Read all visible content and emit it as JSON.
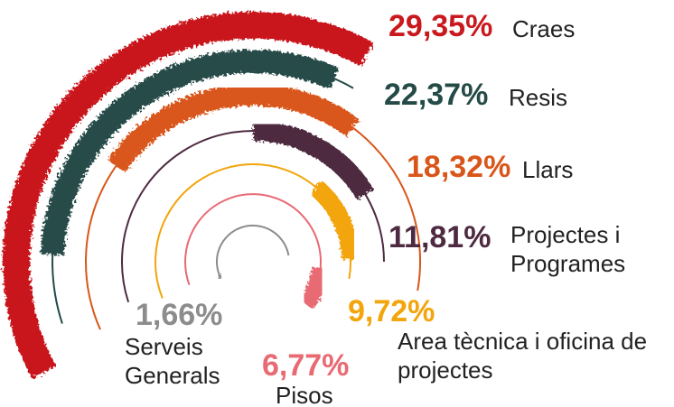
{
  "chart_data": {
    "type": "radial_bar",
    "categories": [
      "Craes",
      "Resis",
      "Llars",
      "Projectes i Programes",
      "Area tècnica i oficina de projectes",
      "Pisos",
      "Serveis Generals"
    ],
    "values": [
      29.35,
      22.37,
      18.32,
      11.81,
      9.72,
      6.77,
      1.66
    ],
    "value_labels": [
      "29,35%",
      "22,37%",
      "18,32%",
      "11,81%",
      "9,72%",
      "6,77%",
      "1,66%"
    ],
    "colors": [
      "#c9191e",
      "#254b48",
      "#d9561a",
      "#4e2a41",
      "#f2a50c",
      "#e86a73",
      "#8c8c8c"
    ]
  }
}
